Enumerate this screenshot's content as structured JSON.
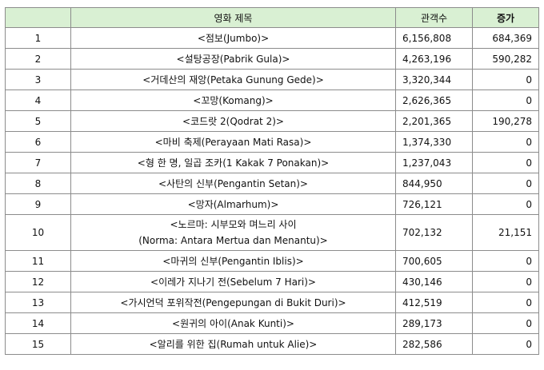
{
  "headers": {
    "rank": "",
    "title": "영화 제목",
    "audience": "관객수",
    "increase": "증가"
  },
  "rows": [
    {
      "rank": "1",
      "title": "<점보(Jumbo)>",
      "audience": "6,156,808",
      "increase": "684,369"
    },
    {
      "rank": "2",
      "title": "<설탕공장(Pabrik Gula)>",
      "audience": "4,263,196",
      "increase": "590,282"
    },
    {
      "rank": "3",
      "title": "<거데산의 재앙(Petaka Gunung Gede)>",
      "audience": "3,320,344",
      "increase": "0"
    },
    {
      "rank": "4",
      "title": "<꼬망(Komang)>",
      "audience": "2,626,365",
      "increase": "0"
    },
    {
      "rank": "5",
      "title": "<코드랏 2(Qodrat 2)>",
      "audience": "2,201,365",
      "increase": "190,278"
    },
    {
      "rank": "6",
      "title": "<마비 축제(Perayaan Mati Rasa)>",
      "audience": "1,374,330",
      "increase": "0"
    },
    {
      "rank": "7",
      "title": "<형 한 명, 일곱 조카(1 Kakak 7 Ponakan)>",
      "audience": "1,237,043",
      "increase": "0"
    },
    {
      "rank": "8",
      "title": "<사탄의 신부(Pengantin Setan)>",
      "audience": "844,950",
      "increase": "0"
    },
    {
      "rank": "9",
      "title": "<망자(Almarhum)>",
      "audience": "726,121",
      "increase": "0"
    },
    {
      "rank": "10",
      "title_line1": "<노르마: 시부모와 며느리 사이",
      "title_line2": "(Norma: Antara Mertua dan Menantu)>",
      "audience": "702,132",
      "increase": "21,151"
    },
    {
      "rank": "11",
      "title": "<마귀의 신부(Pengantin Iblis)>",
      "audience": "700,605",
      "increase": "0"
    },
    {
      "rank": "12",
      "title": "<이레가 지나기 전(Sebelum 7 Hari)>",
      "audience": "430,146",
      "increase": "0"
    },
    {
      "rank": "13",
      "title": "<가시언덕 포위작전(Pengepungan di Bukit Duri)>",
      "audience": "412,519",
      "increase": "0"
    },
    {
      "rank": "14",
      "title": "<원귀의 아이(Anak Kunti)>",
      "audience": "289,173",
      "increase": "0"
    },
    {
      "rank": "15",
      "title": "<알리를 위한 집(Rumah untuk Alie)>",
      "audience": "282,586",
      "increase": "0"
    }
  ]
}
